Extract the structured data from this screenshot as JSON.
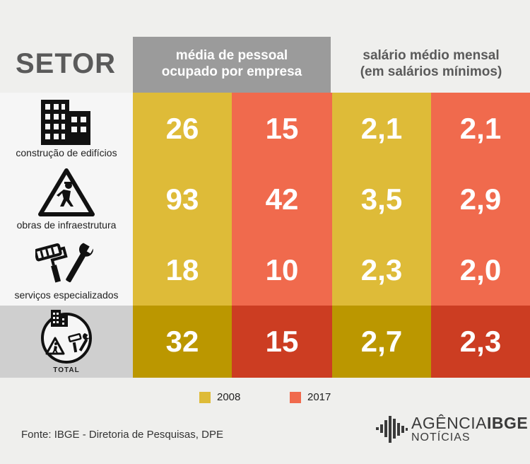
{
  "chart_data": {
    "type": "table",
    "title": "SETOR",
    "column_groups": [
      {
        "line1": "média de pessoal",
        "line2": "ocupado por empresa"
      },
      {
        "line1": "salário médio mensal",
        "line2": "(em salários mínimos)"
      }
    ],
    "series": [
      {
        "name": "2008",
        "color": "#debb38",
        "total_color": "#bb9700"
      },
      {
        "name": "2017",
        "color": "#f06a4d",
        "total_color": "#cc3d22"
      }
    ],
    "rows": [
      {
        "label": "construção de edifícios",
        "icon": "building-icon",
        "values": [
          "26",
          "15",
          "2,1",
          "2,1"
        ]
      },
      {
        "label": "obras de infraestrutura",
        "icon": "worker-sign-icon",
        "values": [
          "93",
          "42",
          "3,5",
          "2,9"
        ]
      },
      {
        "label": "serviços especializados",
        "icon": "roller-wrench-icon",
        "values": [
          "18",
          "10",
          "2,3",
          "2,0"
        ]
      },
      {
        "label": "TOTAL",
        "icon": "total-icon",
        "values": [
          "32",
          "15",
          "2,7",
          "2,3"
        ]
      }
    ]
  },
  "legend": [
    {
      "label": "2008",
      "color": "#debb38"
    },
    {
      "label": "2017",
      "color": "#f06a4d"
    }
  ],
  "source": "Fonte: IBGE - Diretoria de Pesquisas, DPE",
  "brand": {
    "name_part1": "AGÊNCIA",
    "name_part2": "IBGE",
    "subtitle": "NOTÍCIAS"
  }
}
